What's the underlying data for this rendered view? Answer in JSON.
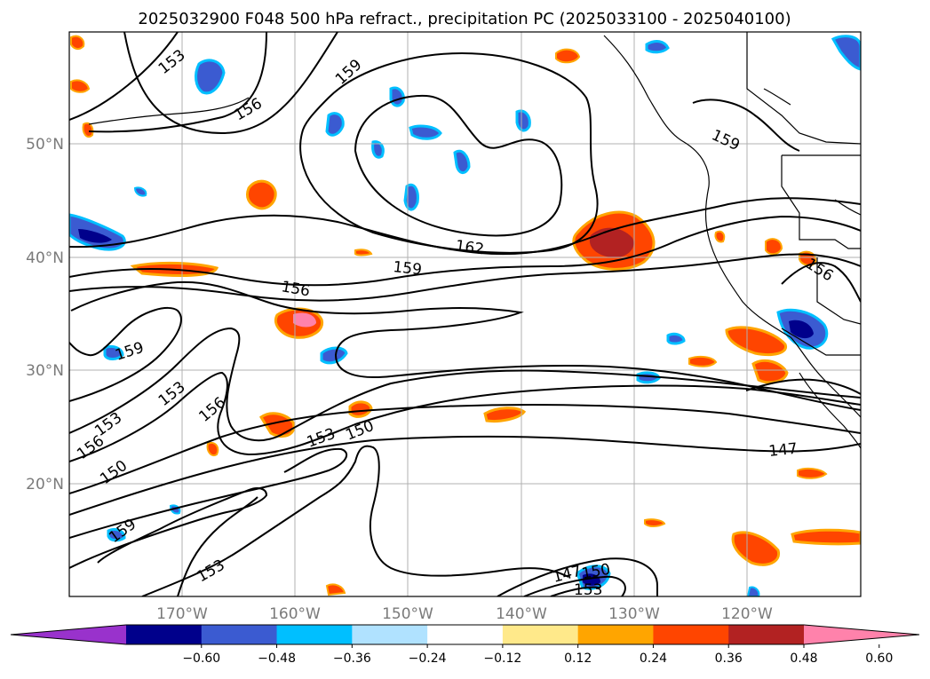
{
  "title": "2025032900 F048 500 hPa refract., precipitation PC (2025033100 - 2025040100)",
  "map": {
    "lat_labels": [
      "50°N",
      "40°N",
      "30°N",
      "20°N"
    ],
    "lon_labels": [
      "170°W",
      "160°W",
      "150°W",
      "140°W",
      "130°W",
      "120°W"
    ],
    "grid": true
  },
  "contour_labels": [
    "153",
    "159",
    "156",
    "159",
    "162",
    "159",
    "156",
    "159",
    "153",
    "153",
    "156",
    "156",
    "150",
    "153",
    "150",
    "159",
    "153",
    "147",
    "147",
    "150",
    "153",
    "156"
  ],
  "colorbar": {
    "colors": [
      "#9932cc",
      "#00008b",
      "#3b5bd1",
      "#00bfff",
      "#b0e2ff",
      "#ffffff",
      "#ffe98a",
      "#ffa500",
      "#ff4500",
      "#b22222",
      "#ff82ab"
    ],
    "tick_labels": [
      "−0.60",
      "−0.48",
      "−0.36",
      "−0.24",
      "−0.12",
      "0.12",
      "0.24",
      "0.36",
      "0.48",
      "0.60"
    ]
  }
}
